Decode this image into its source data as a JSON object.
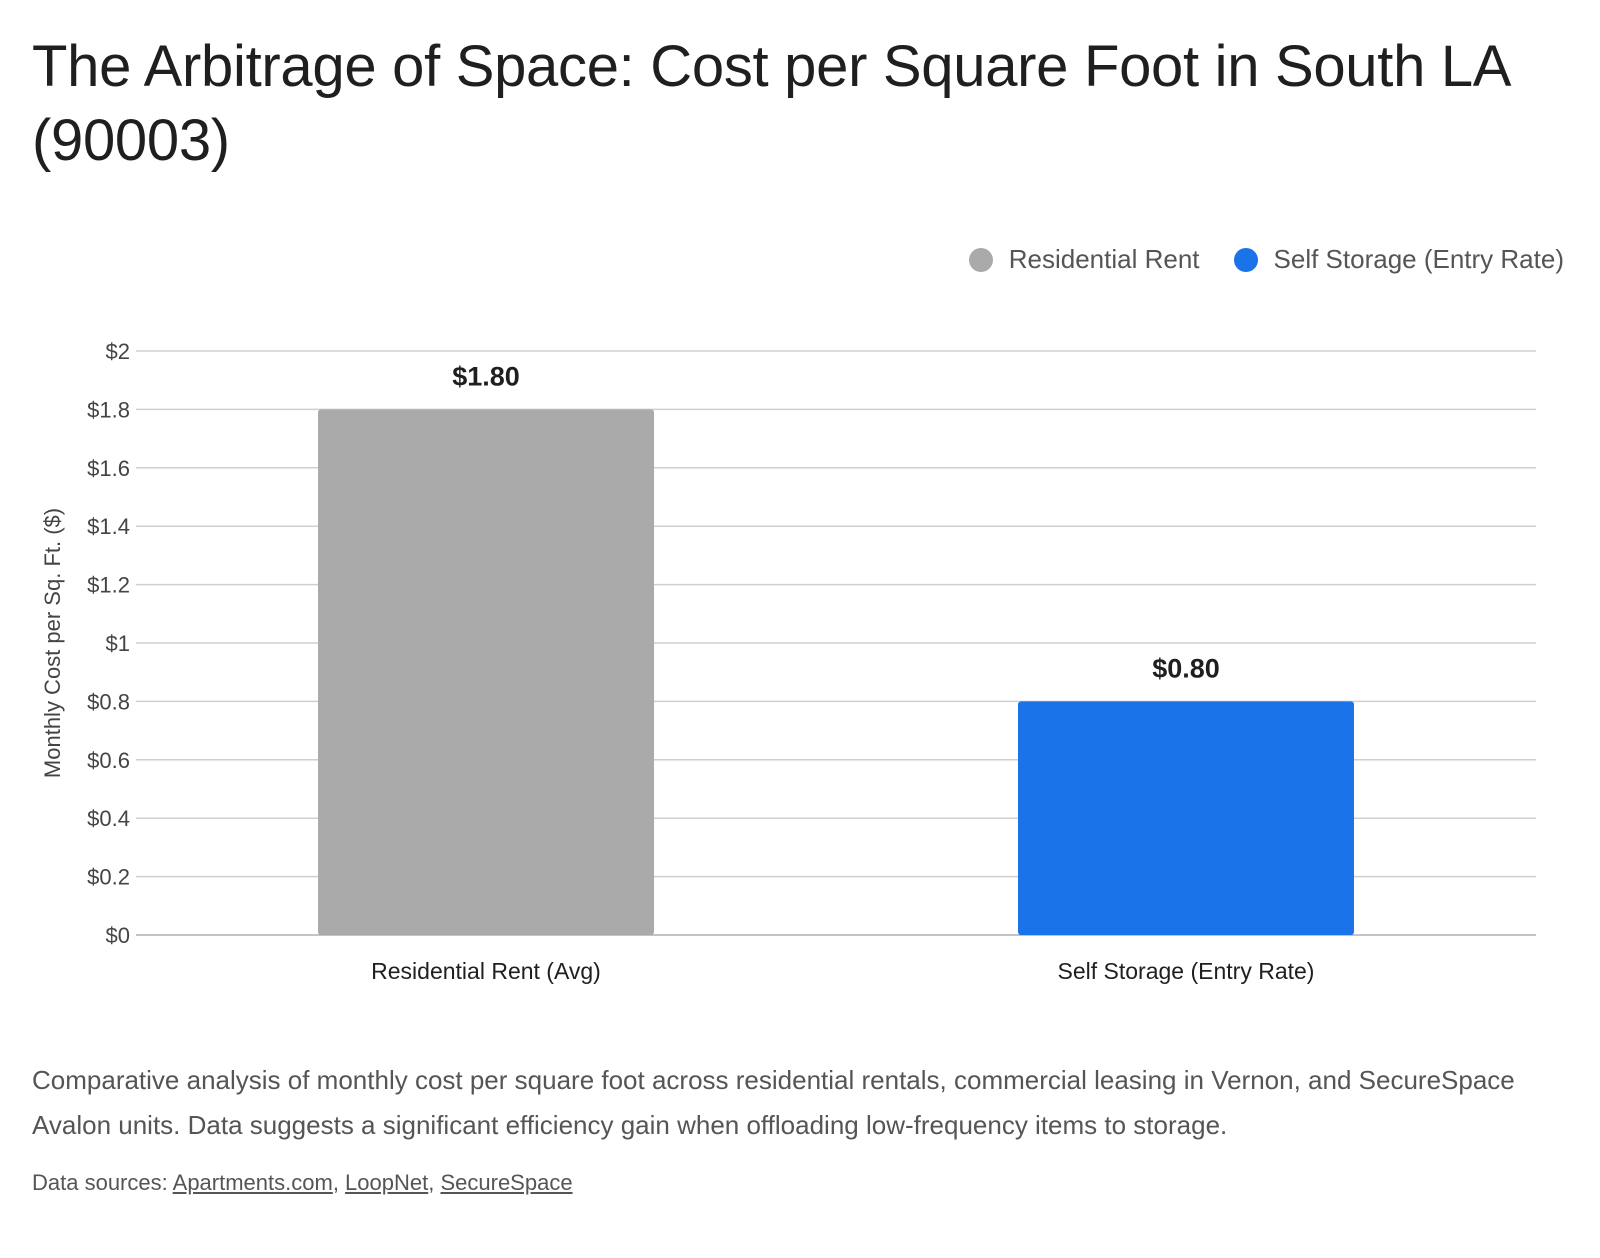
{
  "header": {
    "title": "The Arbitrage of Space: Cost per Square Foot in South LA (90003)"
  },
  "chart_data": {
    "type": "bar",
    "title": "The Arbitrage of Space: Cost per Square Foot in South LA (90003)",
    "categories": [
      "Residential Rent (Avg)",
      "Self Storage (Entry Rate)"
    ],
    "values": [
      1.8,
      0.8
    ],
    "value_labels": [
      "$1.80",
      "$0.80"
    ],
    "bar_colors": [
      "#aaaaaa",
      "#1a73e8"
    ],
    "ylabel": "Monthly Cost per Sq. Ft. ($)",
    "xlabel": "",
    "ylim": [
      0,
      2
    ],
    "y_ticks": [
      0,
      0.2,
      0.4,
      0.6,
      0.8,
      1,
      1.2,
      1.4,
      1.6,
      1.8,
      2
    ],
    "y_tick_labels": [
      "$0",
      "$0.2",
      "$0.4",
      "$0.6",
      "$0.8",
      "$1",
      "$1.2",
      "$1.4",
      "$1.6",
      "$1.8",
      "$2"
    ],
    "grid": true,
    "legend": {
      "placement": "top-right",
      "entries": [
        {
          "label": "Residential Rent",
          "color": "#aaaaaa"
        },
        {
          "label": "Self Storage (Entry Rate)",
          "color": "#1a73e8"
        }
      ]
    }
  },
  "footer": {
    "description": "Comparative analysis of monthly cost per square foot across residential rentals, commercial leasing in Vernon, and SecureSpace Avalon units. Data suggests a significant efficiency gain when offloading low-frequency items to storage.",
    "sources_label": "Data sources: ",
    "sources": [
      "Apartments.com",
      "LoopNet",
      "SecureSpace"
    ],
    "separator": ", "
  }
}
